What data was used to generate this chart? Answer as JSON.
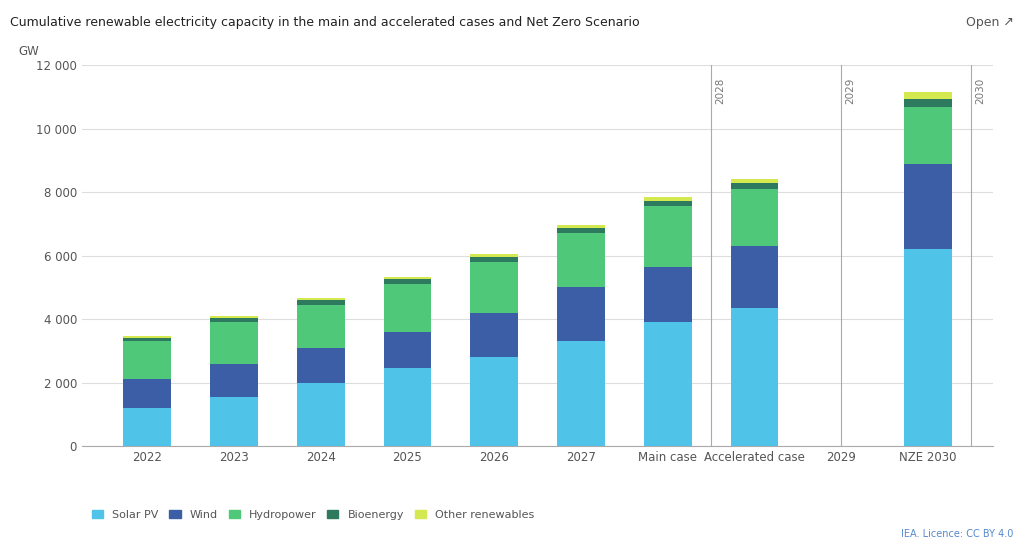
{
  "title": "Cumulative renewable electricity capacity in the main and accelerated cases and Net Zero Scenario",
  "ylabel": "GW",
  "background_color": "#ffffff",
  "plot_bg_color": "#ffffff",
  "categories": [
    "2022",
    "2023",
    "2024",
    "2025",
    "2026",
    "2027",
    "Main case",
    "Accelerated case",
    "2029",
    "NZE 2030"
  ],
  "solar_pv": [
    1200,
    1550,
    2000,
    2450,
    2820,
    3300,
    3900,
    4350,
    0,
    6200
  ],
  "wind": [
    900,
    1050,
    1100,
    1150,
    1380,
    1700,
    1750,
    1950,
    0,
    2700
  ],
  "hydropower": [
    1200,
    1300,
    1350,
    1500,
    1600,
    1700,
    1900,
    1800,
    0,
    1800
  ],
  "bioenergy": [
    120,
    130,
    140,
    150,
    160,
    170,
    180,
    190,
    0,
    250
  ],
  "other": [
    50,
    60,
    70,
    80,
    90,
    100,
    110,
    130,
    0,
    200
  ],
  "vertical_lines": [
    6,
    8,
    9
  ],
  "vertical_line_labels": [
    "2028",
    "2029",
    "2030"
  ],
  "colors": {
    "solar_pv": "#4fc3e8",
    "wind": "#3b5ea6",
    "hydropower": "#4fc87a",
    "bioenergy": "#2d7a5e",
    "other": "#d4e84f"
  },
  "ylim": [
    0,
    12000
  ],
  "yticks": [
    0,
    2000,
    4000,
    6000,
    8000,
    10000,
    12000
  ],
  "ytick_labels": [
    "0",
    "2 000",
    "4 000",
    "6 000",
    "8 000",
    "10 000",
    "12 000"
  ],
  "legend_labels": [
    "Solar PV",
    "Wind",
    "Hydropower",
    "Bioenergy",
    "Other renewables"
  ],
  "attribution": "IEA. Licence: CC BY 4.0",
  "open_label": "Open ↗"
}
